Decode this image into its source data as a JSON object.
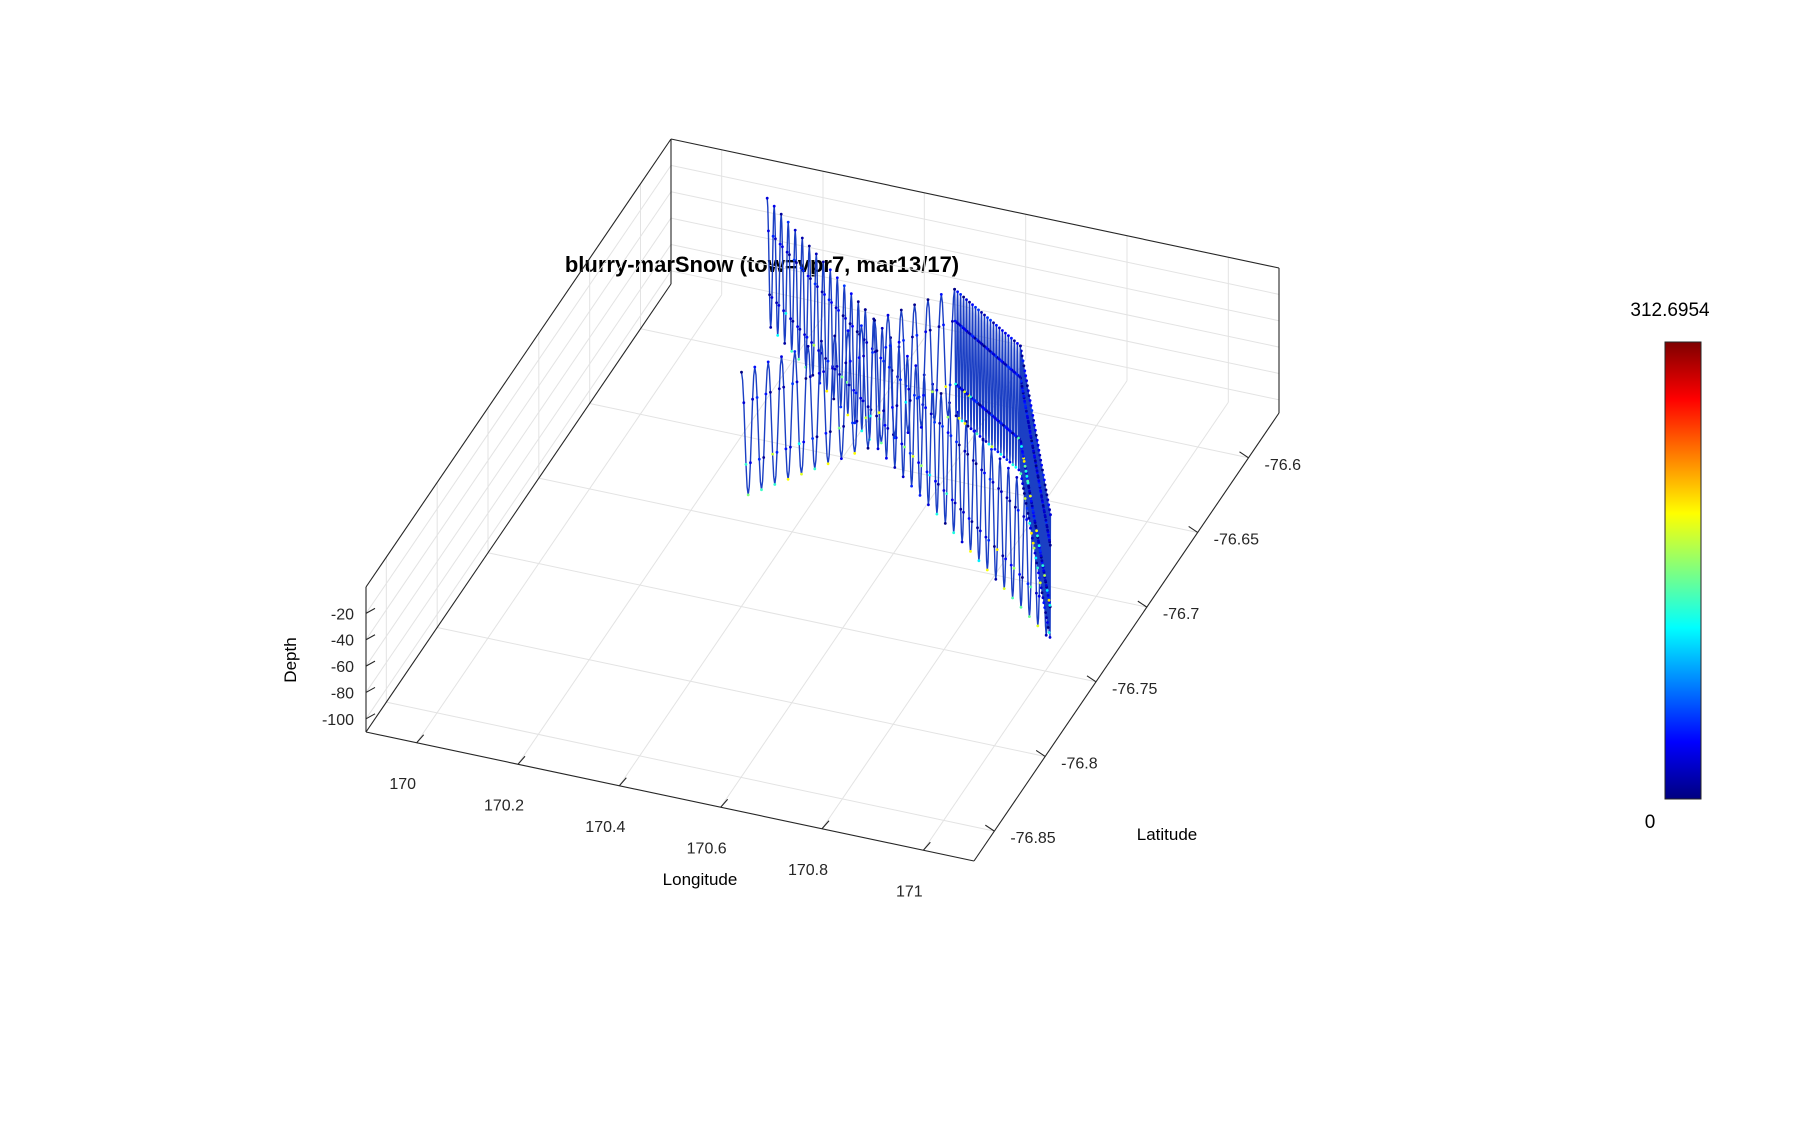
{
  "chart_data": {
    "type": "line3d",
    "title": "blurry-marSnow  (tow=vpr7, mar13/17)",
    "xlabel": "Longitude",
    "ylabel": "Latitude",
    "zlabel": "Depth",
    "xlim": [
      169.9,
      171.1
    ],
    "ylim": [
      -76.87,
      -76.57
    ],
    "zlim": [
      -110,
      0
    ],
    "x_ticks": [
      "170",
      "170.2",
      "170.4",
      "170.6",
      "170.8",
      "171"
    ],
    "y_ticks": [
      "-76.6",
      "-76.65",
      "-76.7",
      "-76.75",
      "-76.8",
      "-76.85"
    ],
    "z_ticks": [
      "-20",
      "-40",
      "-60",
      "-80",
      "-100"
    ],
    "grid": true,
    "colormap": "jet",
    "colorbar": {
      "max_label": "312.6954",
      "min_label": "0",
      "min": 0,
      "max": 312.6954,
      "placement": "right"
    },
    "track": {
      "description_values": "yo-yo tow path (lon, lat) vertices; depth oscillates between about -10 and -105 m",
      "path": [
        [
          170.12,
          -76.585
        ],
        [
          170.42,
          -76.638
        ],
        [
          170.98,
          -76.735
        ],
        [
          170.73,
          -76.64
        ],
        [
          170.55,
          -76.615
        ],
        [
          170.28,
          -76.69
        ]
      ],
      "depth_range": [
        -105,
        -10
      ],
      "cycles": [
        [
          14,
          0.04
        ],
        [
          22,
          0.05
        ],
        [
          34,
          0.08
        ],
        [
          22,
          0.05
        ],
        [
          16,
          0.05
        ]
      ]
    }
  }
}
